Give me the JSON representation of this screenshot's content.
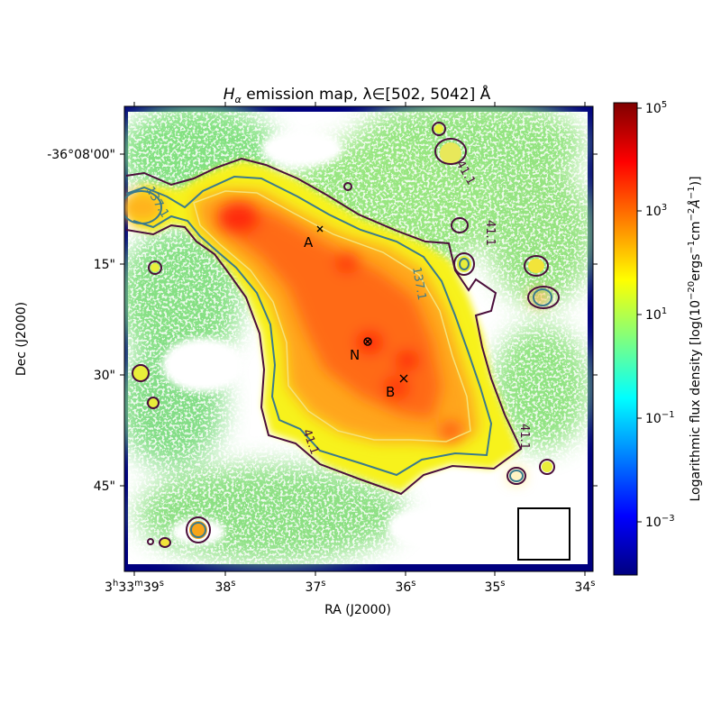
{
  "chart_data": {
    "type": "heatmap",
    "title": {
      "prefix": "H",
      "subscript": "α",
      "text": " emission map, λ∈[502, 5042] Å"
    },
    "xlabel": "RA (J2000)",
    "ylabel": "Dec (J2000)",
    "x_ticks": [
      {
        "base": "3",
        "h": "h",
        "mid": "33",
        "m": "m",
        "sec": "39",
        "s": "s"
      },
      {
        "base": "38",
        "s": "s"
      },
      {
        "base": "37",
        "s": "s"
      },
      {
        "base": "36",
        "s": "s"
      },
      {
        "base": "35",
        "s": "s"
      },
      {
        "base": "34",
        "s": "s"
      }
    ],
    "y_ticks": [
      "-36°08'00\"",
      "15\"",
      "30\"",
      "45\""
    ],
    "colorbar": {
      "label": "Logarithmic flux density [log(10",
      "label_exp1": "−20",
      "label_mid": "ergs",
      "label_exp2": "−1",
      "label_mid2": "cm",
      "label_exp3": "−2",
      "label_mid3": "Å",
      "label_exp4": "−1",
      "label_end": ")]",
      "scale": "log",
      "range": [
        0.0001,
        120000
      ],
      "colormap": "jet",
      "ticks": [
        {
          "base": "10",
          "exp": "5"
        },
        {
          "base": "10",
          "exp": "3"
        },
        {
          "base": "10",
          "exp": "1"
        },
        {
          "base": "10",
          "exp": "−1"
        },
        {
          "base": "10",
          "exp": "−3"
        }
      ]
    },
    "markers": [
      {
        "label": "A"
      },
      {
        "label": "N"
      },
      {
        "label": "B"
      }
    ],
    "contour_labels": [
      "137.1",
      "41.1",
      "41.1",
      "137.1",
      "41.1",
      "41.1"
    ],
    "colors": {
      "contour_outer": "#4a0e3a",
      "contour_mid": "#3a7a8c",
      "contour_inner": "#f5e27a",
      "background_missing": "#ffffff",
      "frame_fill": "#00007f"
    }
  }
}
